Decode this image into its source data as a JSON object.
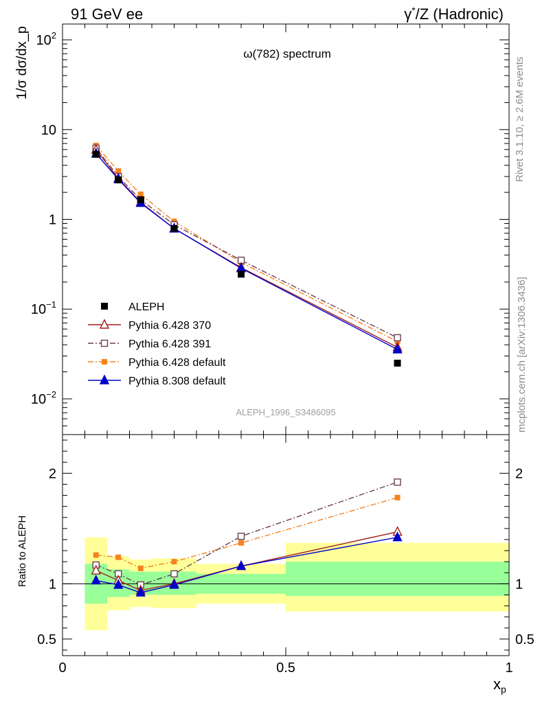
{
  "header": {
    "left": "91 GeV ee",
    "right_sup": "*",
    "right_pre": "γ",
    "right_post": "/Z (Hadronic)"
  },
  "side_labels": {
    "rivet": "Rivet 3.1.10, ≥ 2.6M events",
    "mcplots": "mcplots.cern.ch [arXiv:1306.3436]"
  },
  "chart_data": {
    "type": "line",
    "title": "ω(782) spectrum",
    "analysis_tag": "ALEPH_1996_S3486095",
    "top_panel": {
      "ylabel": "1/σ dσ/dx_p",
      "yscale": "log",
      "ylim": [
        0.004,
        150
      ],
      "yticks": [
        {
          "v": 0.01,
          "base": "10",
          "exp": "−2"
        },
        {
          "v": 0.1,
          "base": "10",
          "exp": "−1"
        },
        {
          "v": 1,
          "base": "1",
          "exp": ""
        },
        {
          "v": 10,
          "base": "10",
          "exp": ""
        },
        {
          "v": 100,
          "base": "10",
          "exp": "2"
        }
      ]
    },
    "ratio_panel": {
      "ylabel": "Ratio to ALEPH",
      "ylim": [
        0.35,
        2.35
      ],
      "yticks": [
        {
          "v": 0.5,
          "label": "0.5"
        },
        {
          "v": 1,
          "label": "1"
        },
        {
          "v": 2,
          "label": "2"
        }
      ],
      "bands": [
        {
          "x0": 0.05,
          "x1": 0.1,
          "inner": [
            0.82,
            1.18
          ],
          "outer": [
            0.58,
            1.42
          ]
        },
        {
          "x0": 0.1,
          "x1": 0.15,
          "inner": [
            0.88,
            1.13
          ],
          "outer": [
            0.76,
            1.25
          ]
        },
        {
          "x0": 0.15,
          "x1": 0.2,
          "inner": [
            0.9,
            1.11
          ],
          "outer": [
            0.79,
            1.22
          ]
        },
        {
          "x0": 0.2,
          "x1": 0.3,
          "inner": [
            0.9,
            1.11
          ],
          "outer": [
            0.78,
            1.23
          ]
        },
        {
          "x0": 0.3,
          "x1": 0.5,
          "inner": [
            0.91,
            1.09
          ],
          "outer": [
            0.82,
            1.18
          ]
        },
        {
          "x0": 0.5,
          "x1": 1.0,
          "inner": [
            0.89,
            1.2
          ],
          "outer": [
            0.75,
            1.37
          ]
        }
      ]
    },
    "xaxis": {
      "label": "x",
      "label_sub": "p",
      "xlim": [
        0,
        1
      ],
      "ticks": [
        {
          "v": 0,
          "label": "0"
        },
        {
          "v": 0.5,
          "label": "0.5"
        },
        {
          "v": 1,
          "label": "1"
        }
      ]
    },
    "x": [
      0.075,
      0.125,
      0.175,
      0.25,
      0.4,
      0.75
    ],
    "data": {
      "name": "ALEPH",
      "color": "#000000",
      "values": [
        5.3,
        2.75,
        1.65,
        0.79,
        0.245,
        0.025
      ]
    },
    "series": [
      {
        "name": "Pythia 6.428 370",
        "color": "#a01c1c",
        "marker": "triangle-open",
        "dash": "",
        "values": [
          5.95,
          2.85,
          1.55,
          0.79,
          0.29,
          0.0375
        ],
        "ratio": [
          1.12,
          1.03,
          0.94,
          1.0,
          1.16,
          1.47
        ]
      },
      {
        "name": "Pythia 6.428 391",
        "color": "#6b3f4f",
        "marker": "square-open",
        "dash": "8,3,2,3",
        "values": [
          6.2,
          3.0,
          1.65,
          0.87,
          0.35,
          0.048
        ],
        "ratio": [
          1.17,
          1.09,
          0.99,
          1.09,
          1.43,
          1.92
        ]
      },
      {
        "name": "Pythia 6.428 default",
        "color": "#f5821f",
        "marker": "square-filled",
        "dash": "8,3,2,3",
        "values": [
          6.65,
          3.45,
          1.9,
          0.95,
          0.33,
          0.0435
        ],
        "ratio": [
          1.26,
          1.24,
          1.14,
          1.2,
          1.37,
          1.78
        ]
      },
      {
        "name": "Pythia 8.308 default",
        "color": "#0000cc",
        "marker": "triangle-filled",
        "dash": "",
        "values": [
          5.4,
          2.8,
          1.52,
          0.79,
          0.285,
          0.0355
        ],
        "ratio": [
          1.03,
          0.99,
          0.92,
          0.99,
          1.16,
          1.42
        ]
      }
    ],
    "colors": {
      "band_inner": "#99ff99",
      "band_outer": "#ffff99"
    }
  }
}
